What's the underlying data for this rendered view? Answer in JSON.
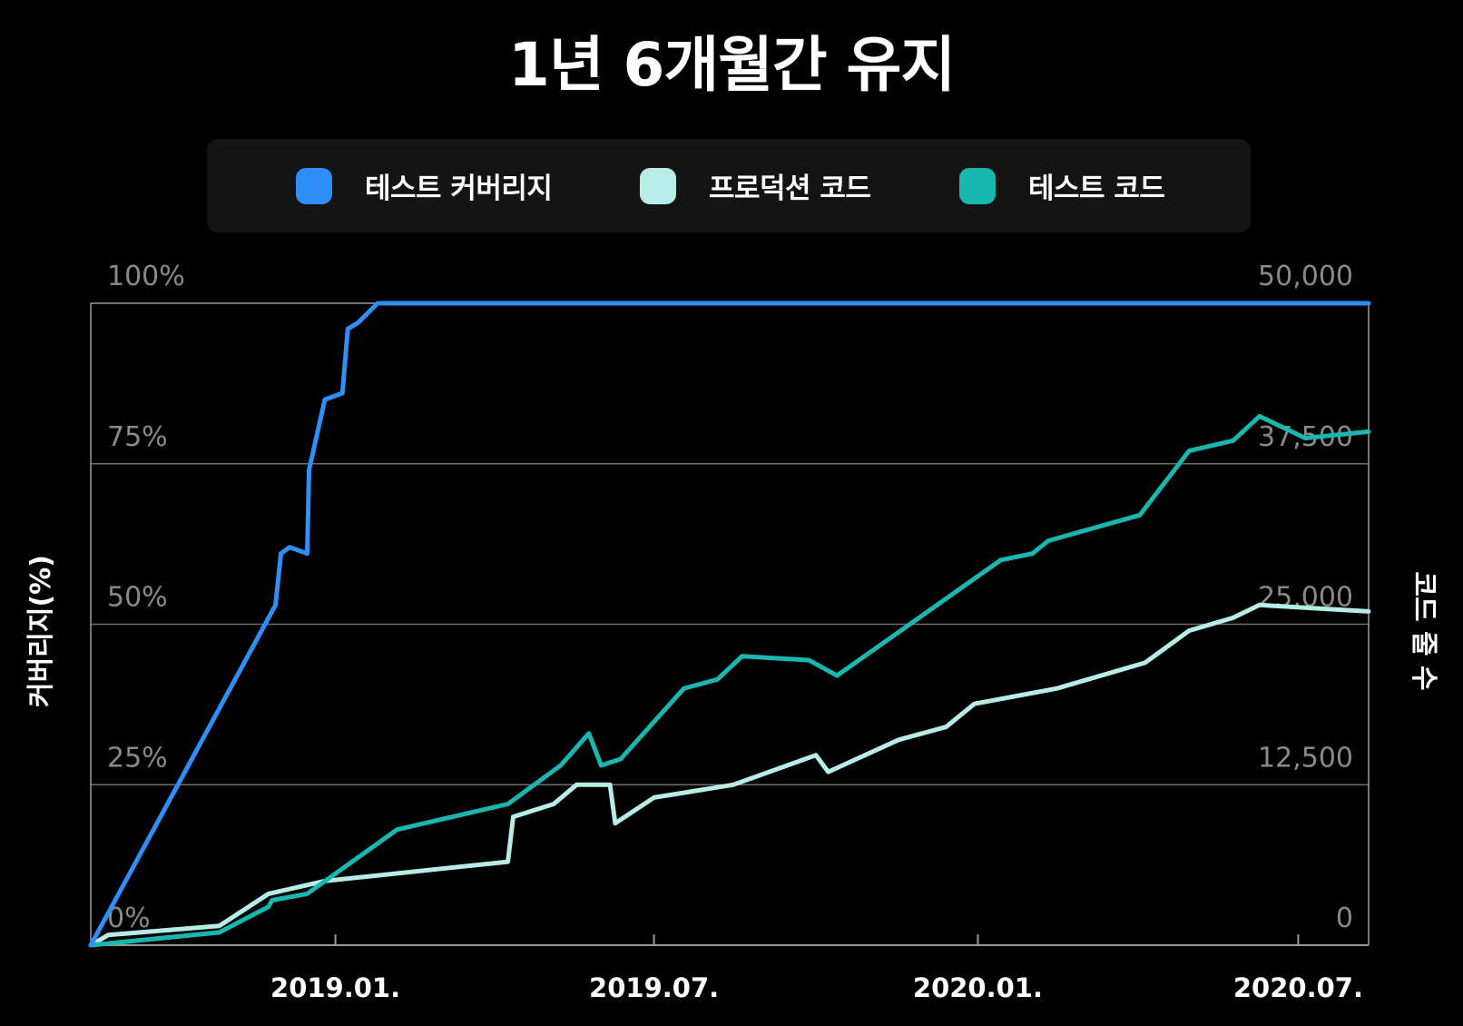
{
  "chart_data": {
    "type": "line",
    "title": "1년 6개월간 유지",
    "ylabel_left": "커버리지(%)",
    "ylabel_right": "코드 줄 수",
    "legend_position": "top",
    "grid": true,
    "y_left": {
      "range": [
        0,
        100
      ],
      "ticks": [
        "0%",
        "25%",
        "50%",
        "75%",
        "100%"
      ]
    },
    "y_right": {
      "range": [
        0,
        50000
      ],
      "ticks": [
        "0",
        "12,500",
        "25,000",
        "37,500",
        "50,000"
      ]
    },
    "x_range": [
      "2018-08-15",
      "2020-08-10"
    ],
    "x_ticks": [
      {
        "date": "2019-01-01",
        "label": "2019.01."
      },
      {
        "date": "2019-07-01",
        "label": "2019.07."
      },
      {
        "date": "2020-01-01",
        "label": "2020.01."
      },
      {
        "date": "2020-07-01",
        "label": "2020.07."
      }
    ],
    "series": [
      {
        "name": "테스트 커버리지",
        "axis": "left",
        "color": "#2f8ff7",
        "points": [
          [
            "2018-08-15",
            0
          ],
          [
            "2018-11-28",
            53
          ],
          [
            "2018-12-01",
            61
          ],
          [
            "2018-12-06",
            62
          ],
          [
            "2018-12-16",
            61
          ],
          [
            "2018-12-17",
            74
          ],
          [
            "2018-12-26",
            85
          ],
          [
            "2019-01-05",
            86
          ],
          [
            "2019-01-08",
            96
          ],
          [
            "2019-01-14",
            97
          ],
          [
            "2019-01-25",
            100
          ],
          [
            "2020-08-10",
            100
          ]
        ]
      },
      {
        "name": "프로덕션 코드",
        "axis": "right",
        "color": "#b8ece8",
        "points": [
          [
            "2018-08-15",
            0
          ],
          [
            "2018-08-25",
            800
          ],
          [
            "2018-10-27",
            1500
          ],
          [
            "2018-11-24",
            4000
          ],
          [
            "2018-12-26",
            5000
          ],
          [
            "2019-04-09",
            6500
          ],
          [
            "2019-04-12",
            10000
          ],
          [
            "2019-05-05",
            11000
          ],
          [
            "2019-05-18",
            12500
          ],
          [
            "2019-06-06",
            12500
          ],
          [
            "2019-06-09",
            9500
          ],
          [
            "2019-07-01",
            11500
          ],
          [
            "2019-08-15",
            12500
          ],
          [
            "2019-10-01",
            14800
          ],
          [
            "2019-10-08",
            13500
          ],
          [
            "2019-11-17",
            16000
          ],
          [
            "2019-12-14",
            17000
          ],
          [
            "2019-12-30",
            18800
          ],
          [
            "2020-02-15",
            20000
          ],
          [
            "2020-04-05",
            22000
          ],
          [
            "2020-04-30",
            24500
          ],
          [
            "2020-05-25",
            25500
          ],
          [
            "2020-06-09",
            26500
          ],
          [
            "2020-08-10",
            26000
          ]
        ]
      },
      {
        "name": "테스트 코드",
        "axis": "right",
        "color": "#1ab7b0",
        "points": [
          [
            "2018-08-15",
            0
          ],
          [
            "2018-10-27",
            1000
          ],
          [
            "2018-11-24",
            3000
          ],
          [
            "2018-11-26",
            3500
          ],
          [
            "2018-12-16",
            4000
          ],
          [
            "2019-02-05",
            9000
          ],
          [
            "2019-04-09",
            11000
          ],
          [
            "2019-05-09",
            14000
          ],
          [
            "2019-05-25",
            16500
          ],
          [
            "2019-06-01",
            14000
          ],
          [
            "2019-06-12",
            14500
          ],
          [
            "2019-07-18",
            20000
          ],
          [
            "2019-08-06",
            20700
          ],
          [
            "2019-08-20",
            22500
          ],
          [
            "2019-09-27",
            22200
          ],
          [
            "2019-10-13",
            21000
          ],
          [
            "2020-01-14",
            30000
          ],
          [
            "2020-02-01",
            30500
          ],
          [
            "2020-02-10",
            31500
          ],
          [
            "2020-04-02",
            33500
          ],
          [
            "2020-04-30",
            38500
          ],
          [
            "2020-05-25",
            39300
          ],
          [
            "2020-06-09",
            41200
          ],
          [
            "2020-07-05",
            39500
          ],
          [
            "2020-08-10",
            40000
          ]
        ]
      }
    ]
  },
  "style": {
    "axis_color": "#9a9a9a",
    "grid_color": "#6e6e6e",
    "legend_background": "#141414"
  }
}
